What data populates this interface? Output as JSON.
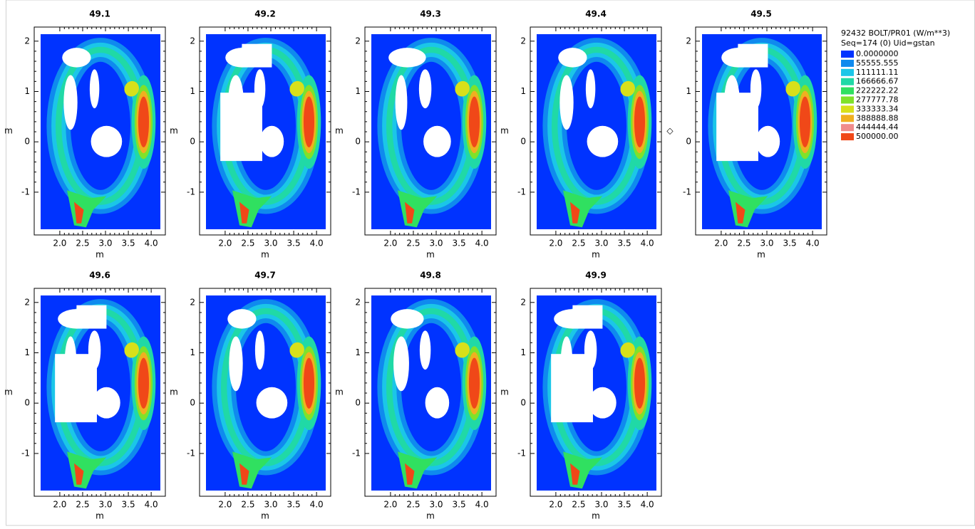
{
  "legend": {
    "title": "92432 BOLT/PR01 (W/m**3)",
    "subtitle": "Seq=174 (0) Uid=gstan",
    "levels": [
      {
        "value": 0,
        "label": "0.0000000",
        "color": "#0033ff"
      },
      {
        "value": 55555.555,
        "label": "55555.555",
        "color": "#0f8aee"
      },
      {
        "value": 111111.11,
        "label": "111111.11",
        "color": "#1bc6e8"
      },
      {
        "value": 166666.67,
        "label": "166666.67",
        "color": "#20d9a6"
      },
      {
        "value": 222222.22,
        "label": "222222.22",
        "color": "#30e060"
      },
      {
        "value": 277777.78,
        "label": "277777.78",
        "color": "#7fe22a"
      },
      {
        "value": 333333.34,
        "label": "333333.34",
        "color": "#d8e01a"
      },
      {
        "value": 388888.88,
        "label": "388888.88",
        "color": "#f0b020"
      },
      {
        "value": 444444.44,
        "label": "444444.44",
        "color": "#f08c8c"
      },
      {
        "value": 500000.0,
        "label": "500000.00",
        "color": "#f04818"
      }
    ]
  },
  "chart_data": [
    {
      "type": "contour",
      "title": "49.1",
      "xlabel": "m",
      "ylabel": "m",
      "xlim": [
        1.44,
        4.31
      ],
      "ylim": [
        -1.85,
        2.28
      ],
      "xticks": [
        {
          "value": 2,
          "label": "2.0"
        },
        2.5,
        {
          "value": 3,
          "label": "3.0"
        },
        3.5,
        {
          "value": 4,
          "label": "4.0"
        }
      ],
      "yticks": [
        -1,
        0,
        1,
        2
      ]
    },
    {
      "type": "contour",
      "title": "49.2",
      "xlabel": "m",
      "ylabel": "m",
      "xlim": [
        1.44,
        4.31
      ],
      "ylim": [
        -1.85,
        2.28
      ],
      "xticks": [
        {
          "value": 2,
          "label": "2.0"
        },
        2.5,
        {
          "value": 3,
          "label": "3.0"
        },
        3.5,
        {
          "value": 4,
          "label": "4.0"
        }
      ],
      "yticks": [
        -1,
        0,
        1,
        2
      ]
    },
    {
      "type": "contour",
      "title": "49.3",
      "xlabel": "m",
      "ylabel": "m",
      "xlim": [
        1.44,
        4.31
      ],
      "ylim": [
        -1.85,
        2.28
      ],
      "xticks": [
        {
          "value": 2,
          "label": "2.0"
        },
        2.5,
        {
          "value": 3,
          "label": "3.0"
        },
        3.5,
        {
          "value": 4,
          "label": "4.0"
        }
      ],
      "yticks": [
        -1,
        0,
        1,
        2
      ]
    },
    {
      "type": "contour",
      "title": "49.4",
      "xlabel": "m",
      "ylabel": "m",
      "xlim": [
        1.44,
        4.31
      ],
      "ylim": [
        -1.85,
        2.28
      ],
      "xticks": [
        {
          "value": 2,
          "label": "2.0"
        },
        2.5,
        {
          "value": 3,
          "label": "3.0"
        },
        3.5,
        {
          "value": 4,
          "label": "4.0"
        }
      ],
      "yticks": [
        -1,
        0,
        1,
        2
      ]
    },
    {
      "type": "contour",
      "title": "49.5",
      "xlabel": "m",
      "ylabel": "◇",
      "xlim": [
        1.44,
        4.31
      ],
      "ylim": [
        -1.85,
        2.28
      ],
      "xticks": [
        {
          "value": 2,
          "label": "2.0"
        },
        2.5,
        {
          "value": 3,
          "label": "3.0"
        },
        3.5,
        {
          "value": 4,
          "label": "4.0"
        }
      ],
      "yticks": [
        -1,
        0,
        1,
        2
      ]
    },
    {
      "type": "contour",
      "title": "49.6",
      "xlabel": "m",
      "ylabel": "m",
      "xlim": [
        1.44,
        4.31
      ],
      "ylim": [
        -1.85,
        2.28
      ],
      "xticks": [
        {
          "value": 2,
          "label": "2.0"
        },
        2.5,
        {
          "value": 3,
          "label": "3.0"
        },
        3.5,
        {
          "value": 4,
          "label": "4.0"
        }
      ],
      "yticks": [
        -1,
        0,
        1,
        2
      ]
    },
    {
      "type": "contour",
      "title": "49.7",
      "xlabel": "m",
      "ylabel": "m",
      "xlim": [
        1.44,
        4.31
      ],
      "ylim": [
        -1.85,
        2.28
      ],
      "xticks": [
        {
          "value": 2,
          "label": "2.0"
        },
        2.5,
        {
          "value": 3,
          "label": "3.0"
        },
        3.5,
        {
          "value": 4,
          "label": "4.0"
        }
      ],
      "yticks": [
        -1,
        0,
        1,
        2
      ]
    },
    {
      "type": "contour",
      "title": "49.8",
      "xlabel": "m",
      "ylabel": "m",
      "xlim": [
        1.44,
        4.31
      ],
      "ylim": [
        -1.85,
        2.28
      ],
      "xticks": [
        {
          "value": 2,
          "label": "2.0"
        },
        2.5,
        {
          "value": 3,
          "label": "3.0"
        },
        3.5,
        {
          "value": 4,
          "label": "4.0"
        }
      ],
      "yticks": [
        -1,
        0,
        1,
        2
      ]
    },
    {
      "type": "contour",
      "title": "49.9",
      "xlabel": "m",
      "ylabel": "m",
      "xlim": [
        1.44,
        4.31
      ],
      "ylim": [
        -1.85,
        2.28
      ],
      "xticks": [
        {
          "value": 2,
          "label": "2.0"
        },
        2.5,
        {
          "value": 3,
          "label": "3.0"
        },
        3.5,
        {
          "value": 4,
          "label": "4.0"
        }
      ],
      "yticks": [
        -1,
        0,
        1,
        2
      ]
    }
  ]
}
